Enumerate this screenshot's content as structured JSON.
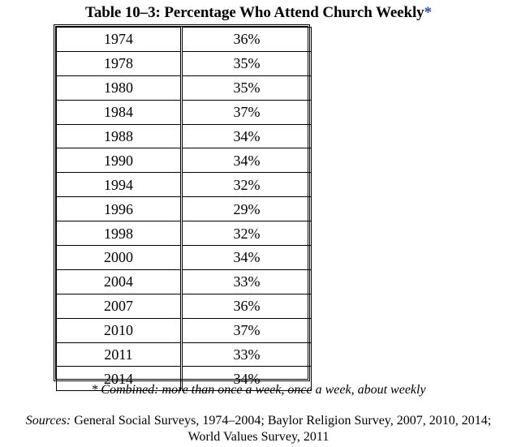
{
  "title": {
    "text": "Table 10–3: Percentage Who Attend Church Weekly",
    "asterisk": "*"
  },
  "table": {
    "rows": [
      {
        "year": "1974",
        "percent": "36%"
      },
      {
        "year": "1978",
        "percent": "35%"
      },
      {
        "year": "1980",
        "percent": "35%"
      },
      {
        "year": "1984",
        "percent": "37%"
      },
      {
        "year": "1988",
        "percent": "34%"
      },
      {
        "year": "1990",
        "percent": "34%"
      },
      {
        "year": "1994",
        "percent": "32%"
      },
      {
        "year": "1996",
        "percent": "29%"
      },
      {
        "year": "1998",
        "percent": "32%"
      },
      {
        "year": "2000",
        "percent": "34%"
      },
      {
        "year": "2004",
        "percent": "33%"
      },
      {
        "year": "2007",
        "percent": "36%"
      },
      {
        "year": "2010",
        "percent": "37%"
      },
      {
        "year": "2011",
        "percent": "33%"
      },
      {
        "year": "2014",
        "percent": "34%"
      }
    ]
  },
  "footnote": "* Combined: more than once a week, once a week, about weekly",
  "sources": {
    "label": "Sources:",
    "line1": "General Social Surveys, 1974–2004; Baylor Religion Survey, 2007, 2010, 2014;",
    "line2": "World Values Survey, 2011"
  },
  "colors": {
    "asterisk": "#1f4fb4"
  }
}
